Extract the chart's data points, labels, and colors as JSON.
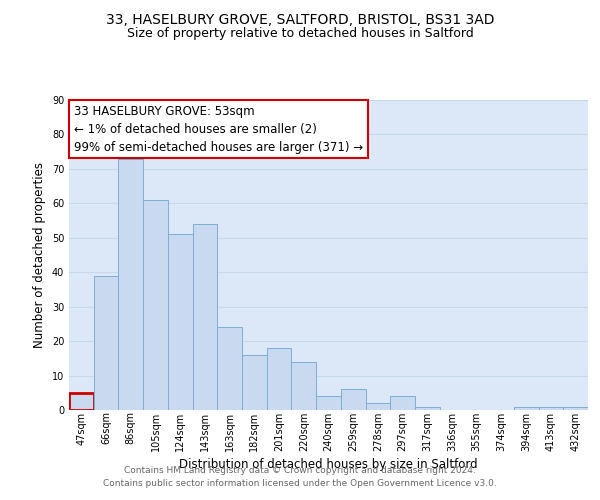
{
  "title_line1": "33, HASELBURY GROVE, SALTFORD, BRISTOL, BS31 3AD",
  "title_line2": "Size of property relative to detached houses in Saltford",
  "xlabel": "Distribution of detached houses by size in Saltford",
  "ylabel": "Number of detached properties",
  "bar_labels": [
    "47sqm",
    "66sqm",
    "86sqm",
    "105sqm",
    "124sqm",
    "143sqm",
    "163sqm",
    "182sqm",
    "201sqm",
    "220sqm",
    "240sqm",
    "259sqm",
    "278sqm",
    "297sqm",
    "317sqm",
    "336sqm",
    "355sqm",
    "374sqm",
    "394sqm",
    "413sqm",
    "432sqm"
  ],
  "bar_values": [
    5,
    39,
    73,
    61,
    51,
    54,
    24,
    16,
    18,
    14,
    4,
    6,
    2,
    4,
    1,
    0,
    0,
    0,
    1,
    1,
    1
  ],
  "bar_color": "#c9d9f0",
  "bar_edge_color": "#7bafd4",
  "highlight_bar_index": 0,
  "highlight_bar_edge_color": "#cc0000",
  "annotation_title": "33 HASELBURY GROVE: 53sqm",
  "annotation_line1": "← 1% of detached houses are smaller (2)",
  "annotation_line2": "99% of semi-detached houses are larger (371) →",
  "annotation_box_edge_color": "#cc0000",
  "ylim": [
    0,
    90
  ],
  "yticks": [
    0,
    10,
    20,
    30,
    40,
    50,
    60,
    70,
    80,
    90
  ],
  "grid_color": "#c8d8ec",
  "bg_color": "#dce8f8",
  "footer_line1": "Contains HM Land Registry data © Crown copyright and database right 2024.",
  "footer_line2": "Contains public sector information licensed under the Open Government Licence v3.0.",
  "title_fontsize": 10,
  "subtitle_fontsize": 9,
  "axis_label_fontsize": 8.5,
  "tick_fontsize": 7,
  "annotation_title_fontsize": 9,
  "annotation_body_fontsize": 8.5,
  "footer_fontsize": 6.5
}
